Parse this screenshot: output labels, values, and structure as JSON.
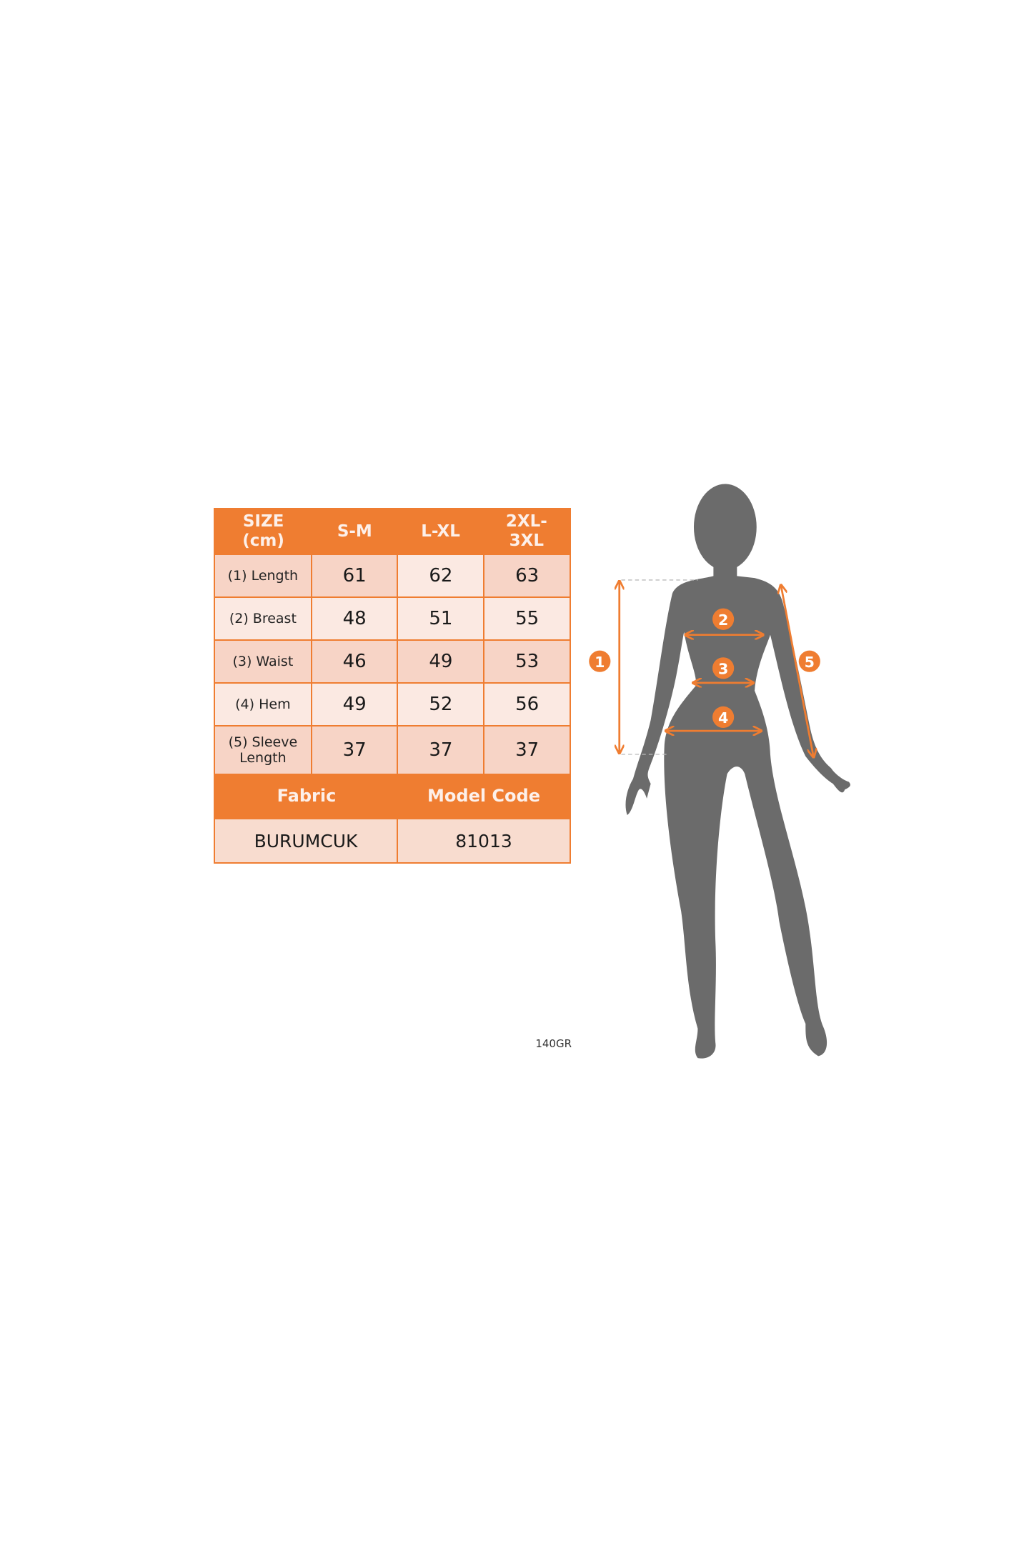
{
  "colors": {
    "accent": "#ef7d31",
    "cell_dark": "#f7d4c6",
    "cell_light": "#fbe9e2",
    "silhouette": "#6b6b6b"
  },
  "size_table": {
    "header": [
      "SIZE (cm)",
      "S-M",
      "L-XL",
      "2XL-3XL"
    ],
    "header_lines": {
      "size": [
        "SIZE",
        "(cm)"
      ],
      "xxl": [
        "2XL-",
        "3XL"
      ]
    },
    "rows": [
      {
        "label": "(1) Length",
        "values": [
          "61",
          "62",
          "63"
        ]
      },
      {
        "label": "(2) Breast",
        "values": [
          "48",
          "51",
          "55"
        ]
      },
      {
        "label": "(3) Waist",
        "values": [
          "46",
          "49",
          "53"
        ]
      },
      {
        "label": "(4) Hem",
        "values": [
          "49",
          "52",
          "56"
        ]
      },
      {
        "label_lines": [
          "(5) Sleeve",
          "Length"
        ],
        "values": [
          "37",
          "37",
          "37"
        ]
      }
    ],
    "fabric_label": "Fabric",
    "model_code_label": "Model Code",
    "fabric_value": "BURUMCUK",
    "model_code_value": "81013",
    "weight": "140GR"
  },
  "figure": {
    "markers": [
      "1",
      "2",
      "3",
      "4",
      "5"
    ]
  }
}
